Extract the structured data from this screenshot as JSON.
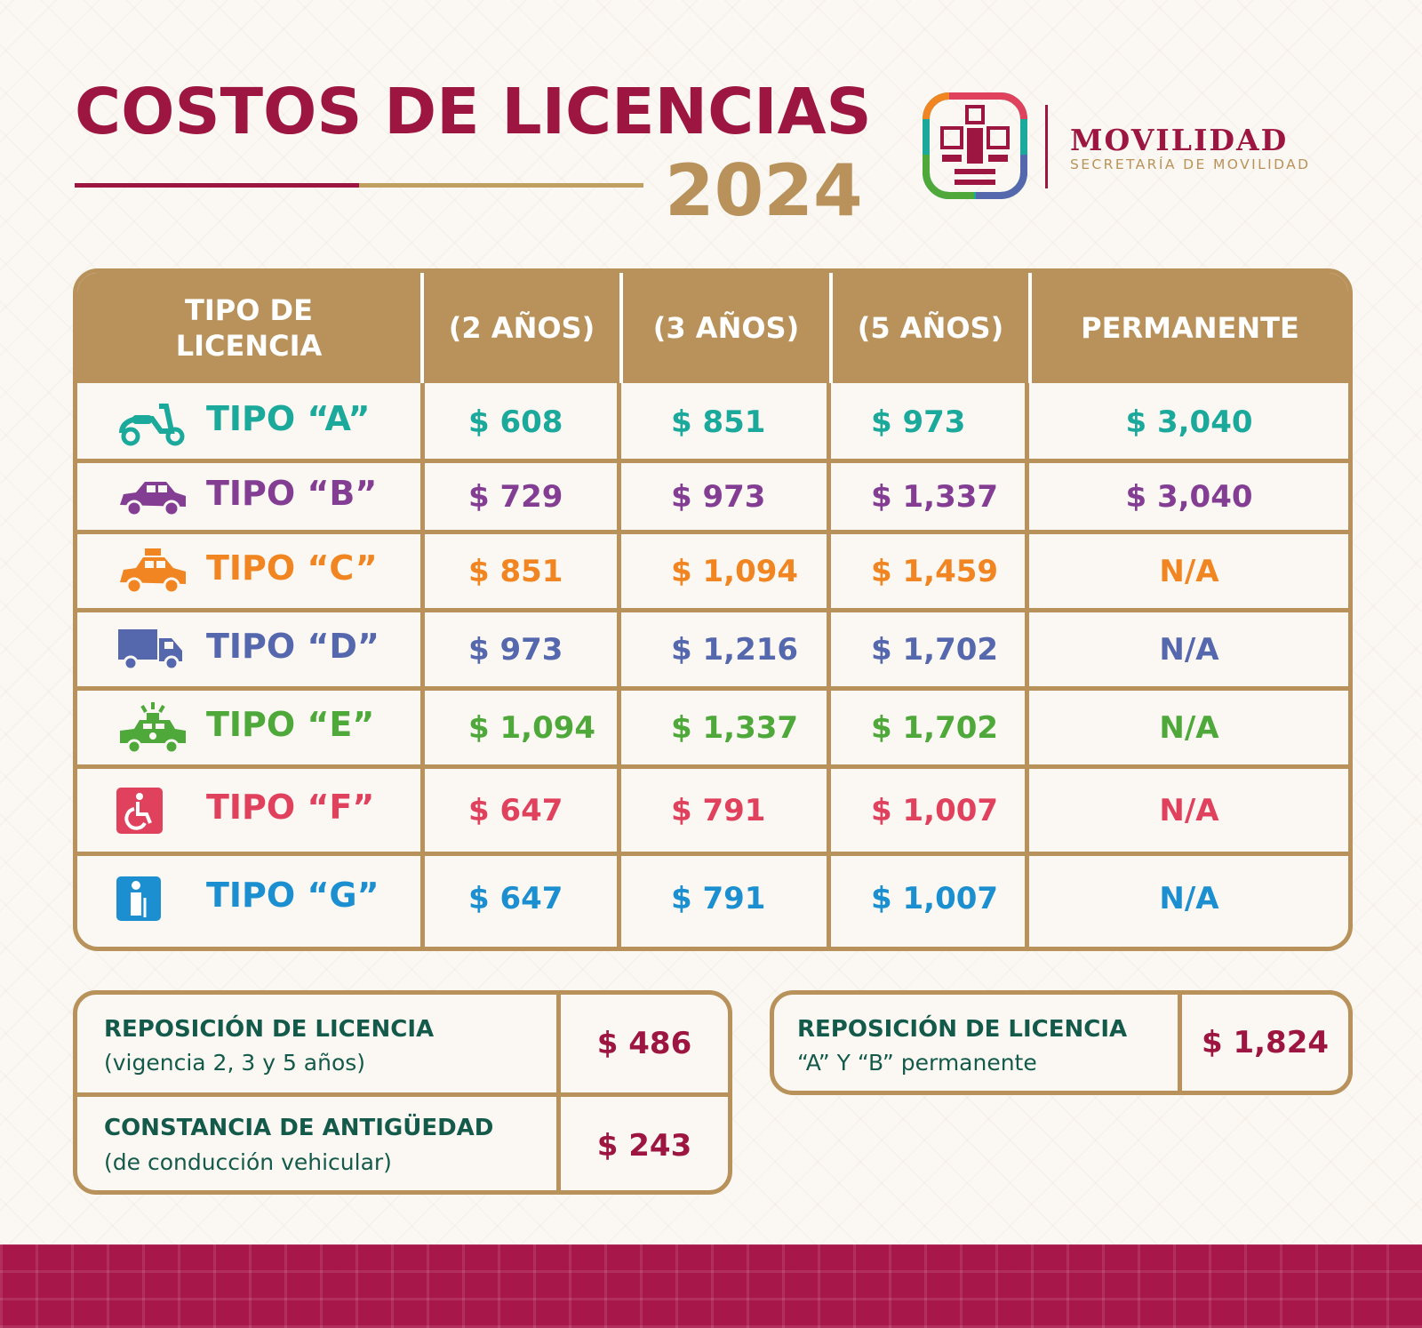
{
  "header": {
    "title": "COSTOS DE LICENCIAS",
    "year": "2024",
    "brand": "MOVILIDAD",
    "brand_sub": "SECRETARÍA DE MOVILIDAD"
  },
  "table": {
    "headers": {
      "type_line1": "TIPO DE",
      "type_line2": "LICENCIA",
      "two_years": "(2 AÑOS)",
      "three_years": "(3 AÑOS)",
      "five_years": "(5 AÑOS)",
      "permanent": "PERMANENTE"
    },
    "rows": [
      {
        "label": "TIPO “A”",
        "icon": "scooter-icon",
        "color": "#1aa99a",
        "p2": "$ 608",
        "p3": "$ 851",
        "p5": "$ 973",
        "perm": "$ 3,040"
      },
      {
        "label": "TIPO “B”",
        "icon": "car-icon",
        "color": "#833e93",
        "p2": "$ 729",
        "p3": "$ 973",
        "p5": "$ 1,337",
        "perm": "$ 3,040"
      },
      {
        "label": "TIPO “C”",
        "icon": "taxi-icon",
        "color": "#f08522",
        "p2": "$ 851",
        "p3": "$ 1,094",
        "p5": "$ 1,459",
        "perm": "N/A"
      },
      {
        "label": "TIPO “D”",
        "icon": "truck-icon",
        "color": "#5567ad",
        "p2": "$ 973",
        "p3": "$ 1,216",
        "p5": "$ 1,702",
        "perm": "N/A"
      },
      {
        "label": "TIPO “E”",
        "icon": "ambulance-icon",
        "color": "#4ea83a",
        "p2": "$ 1,094",
        "p3": "$ 1,337",
        "p5": "$ 1,702",
        "perm": "N/A"
      },
      {
        "label": "TIPO “F”",
        "icon": "wheelchair-icon",
        "color": "#e0425e",
        "p2": "$ 647",
        "p3": "$ 791",
        "p5": "$ 1,007",
        "perm": "N/A"
      },
      {
        "label": "TIPO “G”",
        "icon": "elderly-person-icon",
        "color": "#1b8fcf",
        "p2": "$ 647",
        "p3": "$ 791",
        "p5": "$ 1,007",
        "perm": "N/A"
      }
    ]
  },
  "extras": {
    "replacement": {
      "label": "REPOSICIÓN DE LICENCIA",
      "sub": "(vigencia 2, 3 y 5 años)",
      "price": "$ 486"
    },
    "seniority": {
      "label": "CONSTANCIA DE ANTIGÜEDAD",
      "sub": "(de conducción vehicular)",
      "price": "$ 243"
    },
    "replacement_permanent": {
      "label": "REPOSICIÓN DE LICENCIA",
      "sub": "“A” Y “B” permanente",
      "price": "$ 1,824"
    }
  },
  "colors": {
    "primary": "#9d1642",
    "gold": "#b8925a",
    "dark_green": "#145a4a"
  }
}
